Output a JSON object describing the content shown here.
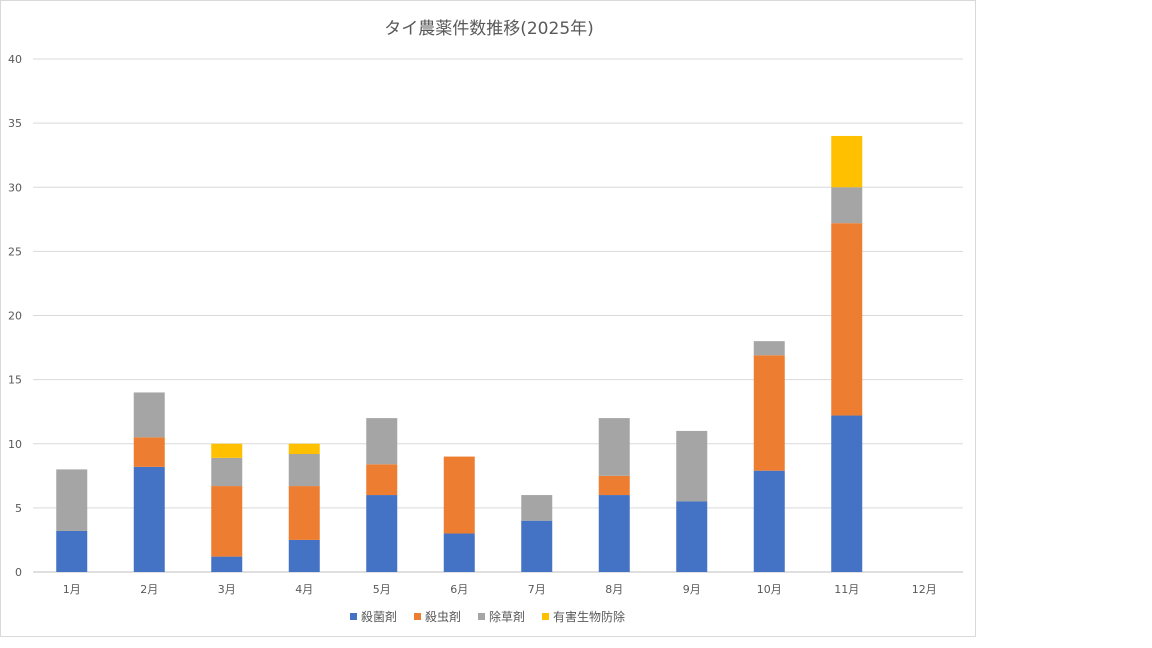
{
  "chart_data": {
    "type": "bar",
    "stacked": true,
    "title": "タイ農薬件数推移(2025年)",
    "xlabel": "",
    "ylabel": "",
    "ylim": [
      0,
      40
    ],
    "yticks": [
      0,
      5,
      10,
      15,
      20,
      25,
      30,
      35,
      40
    ],
    "grid": true,
    "legend_position": "bottom",
    "categories": [
      "1月",
      "2月",
      "3月",
      "4月",
      "5月",
      "6月",
      "7月",
      "8月",
      "9月",
      "10月",
      "11月",
      "12月"
    ],
    "series": [
      {
        "name": "殺菌剤",
        "color": "#4472C4",
        "values": [
          3.2,
          8.2,
          1.2,
          2.5,
          6,
          3,
          4,
          6,
          5.5,
          7.9,
          12.2,
          0
        ]
      },
      {
        "name": "殺虫剤",
        "color": "#ED7D31",
        "values": [
          0,
          2.3,
          5.5,
          4.2,
          2.4,
          6,
          0,
          1.5,
          0,
          9,
          15,
          0
        ]
      },
      {
        "name": "除草剤",
        "color": "#A5A5A5",
        "values": [
          4.8,
          3.5,
          2.2,
          2.5,
          3.6,
          0,
          2,
          4.5,
          5.5,
          1.1,
          2.8,
          0
        ]
      },
      {
        "name": "有害生物防除",
        "color": "#FFC000",
        "values": [
          0,
          0,
          1.1,
          0.8,
          0,
          0,
          0,
          0,
          0,
          0,
          4,
          0
        ]
      }
    ]
  }
}
